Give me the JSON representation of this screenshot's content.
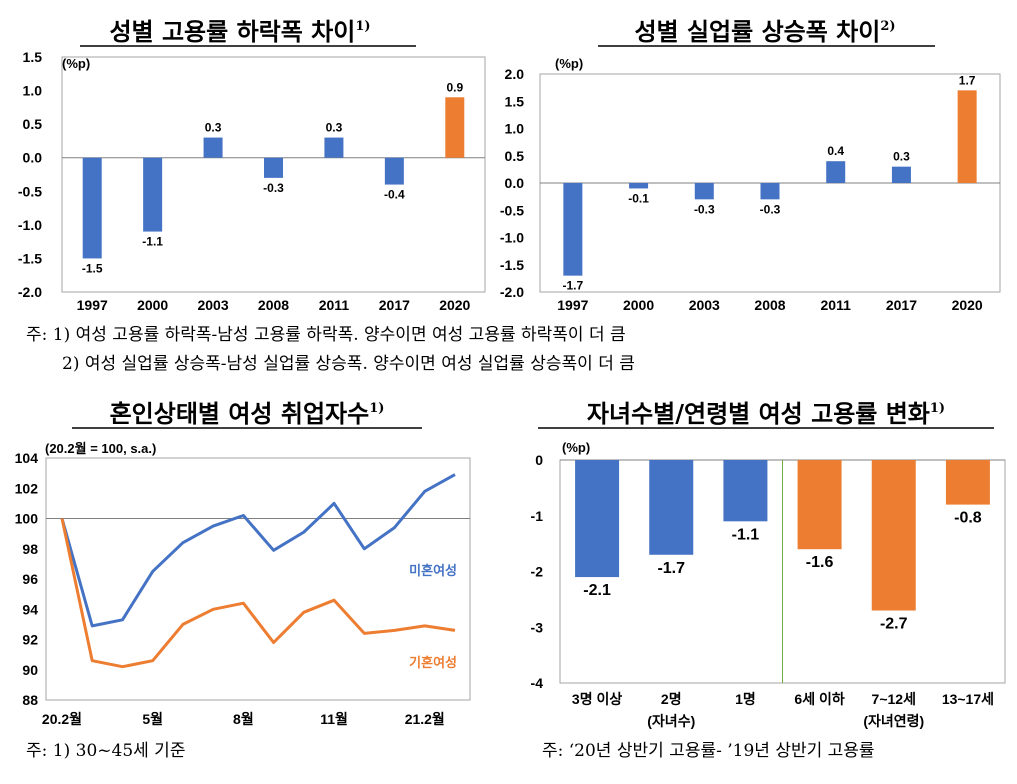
{
  "colors": {
    "blue": "#4472C4",
    "orange": "#ED7D31",
    "frame": "#A6A6A6",
    "divider": "#70AD47"
  },
  "notes_top": [
    "주: 1) 여성 고용률 하락폭-남성 고용률 하락폭. 양수이면 여성 고용률 하락폭이 더 큼",
    "2) 여성 실업률 상승폭-남성 실업률 상승폭. 양수이면 여성 실업률 상승폭이 더 큼"
  ],
  "note_bottom_left": "주: 1) 30~45세 기준",
  "note_bottom_right": "주: ‘20년 상반기 고용률- ’19년 상반기 고용률",
  "chart_data": [
    {
      "type": "bar",
      "title": "성별 고용률 하락폭 차이",
      "title_sup": "1)",
      "ylabel": "(%p)",
      "ylim": [
        -2.0,
        1.5
      ],
      "yticks": [
        "1.5",
        "1.0",
        "0.5",
        "0.0",
        "-0.5",
        "-1.0",
        "-1.5",
        "-2.0"
      ],
      "categories": [
        "1997",
        "2000",
        "2003",
        "2008",
        "2011",
        "2017",
        "2020"
      ],
      "values": [
        -1.5,
        -1.1,
        0.3,
        -0.3,
        0.3,
        -0.4,
        0.9
      ],
      "labels": [
        "-1.5",
        "-1.1",
        "0.3",
        "-0.3",
        "0.3",
        "-0.4",
        "0.9"
      ],
      "bar_colors": [
        "blue",
        "blue",
        "blue",
        "blue",
        "blue",
        "blue",
        "orange"
      ]
    },
    {
      "type": "bar",
      "title": "성별 실업률 상승폭 차이",
      "title_sup": "2)",
      "ylabel": "(%p)",
      "ylim": [
        -2.0,
        2.0
      ],
      "yticks": [
        "2.0",
        "1.5",
        "1.0",
        "0.5",
        "0.0",
        "-0.5",
        "-1.0",
        "-1.5",
        "-2.0"
      ],
      "categories": [
        "1997",
        "2000",
        "2003",
        "2008",
        "2011",
        "2017",
        "2020"
      ],
      "values": [
        -1.7,
        -0.1,
        -0.3,
        -0.3,
        0.4,
        0.3,
        1.7
      ],
      "labels": [
        "-1.7",
        "-0.1",
        "-0.3",
        "-0.3",
        "0.4",
        "0.3",
        "1.7"
      ],
      "bar_colors": [
        "blue",
        "blue",
        "blue",
        "blue",
        "blue",
        "blue",
        "orange"
      ]
    },
    {
      "type": "line",
      "title": "혼인상태별 여성 취업자수",
      "title_sup": "1)",
      "ylabel": "(20.2월 = 100, s.a.)",
      "ylim": [
        88,
        104
      ],
      "yticks": [
        "104",
        "102",
        "100",
        "98",
        "96",
        "94",
        "92",
        "90",
        "88"
      ],
      "x": [
        "20.2",
        "20.3",
        "20.4",
        "20.5",
        "20.6",
        "20.7",
        "20.8",
        "20.9",
        "20.10",
        "20.11",
        "20.12",
        "21.1",
        "21.2",
        "21.3"
      ],
      "xtick_labels": [
        {
          "at": 0,
          "label": "20.2월"
        },
        {
          "at": 3,
          "label": "5월"
        },
        {
          "at": 6,
          "label": "8월"
        },
        {
          "at": 9,
          "label": "11월"
        },
        {
          "at": 12,
          "label": "21.2월"
        }
      ],
      "series": [
        {
          "name": "미혼여성",
          "color": "blue",
          "values": [
            100,
            92.9,
            93.3,
            96.5,
            98.4,
            99.5,
            100.2,
            97.9,
            99.1,
            101.0,
            98.0,
            99.4,
            101.8,
            102.9
          ]
        },
        {
          "name": "기혼여성",
          "color": "orange",
          "values": [
            100,
            90.6,
            90.2,
            90.6,
            93.0,
            94.0,
            94.4,
            91.8,
            93.8,
            94.6,
            92.4,
            92.6,
            92.9,
            92.6
          ]
        }
      ],
      "reference_line": 100
    },
    {
      "type": "bar",
      "title": "자녀수별/연령별 여성 고용률 변화",
      "title_sup": "1)",
      "ylabel": "(%p)",
      "ylim": [
        -4,
        0
      ],
      "yticks": [
        "0",
        "-1",
        "-2",
        "-3",
        "-4"
      ],
      "categories": [
        "3명 이상",
        "2명",
        "1명",
        "6세 이하",
        "7~12세",
        "13~17세"
      ],
      "group_labels": [
        "(자녀수)",
        "(자녀연령)"
      ],
      "values": [
        -2.1,
        -1.7,
        -1.1,
        -1.6,
        -2.7,
        -0.8
      ],
      "labels": [
        "-2.1",
        "-1.7",
        "-1.1",
        "-1.6",
        "-2.7",
        "-0.8"
      ],
      "bar_colors": [
        "blue",
        "blue",
        "blue",
        "orange",
        "orange",
        "orange"
      ]
    }
  ]
}
